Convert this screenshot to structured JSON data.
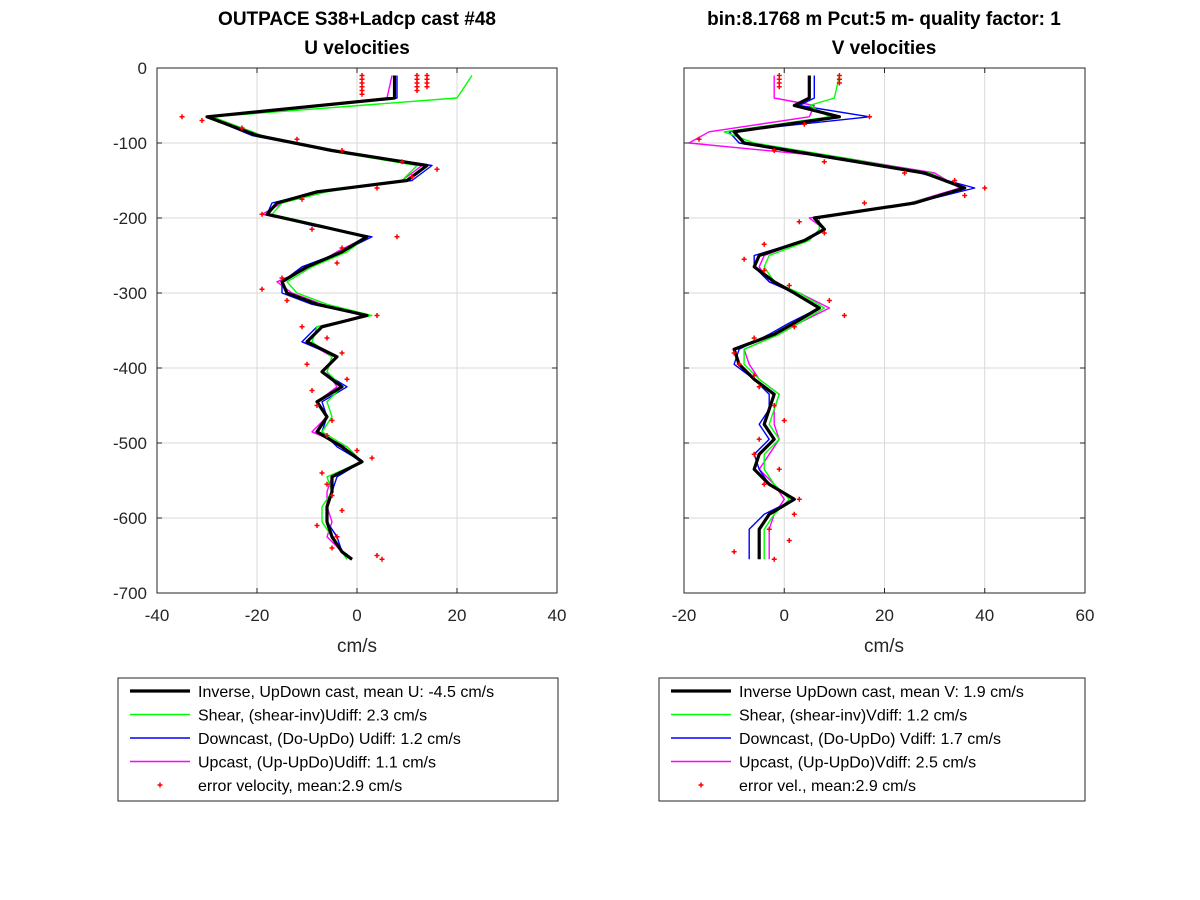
{
  "colors": {
    "inverse": "#000000",
    "shear": "#00ff00",
    "downcast": "#0000ff",
    "upcast": "#ff00ff",
    "error": "#ff0000",
    "grid": "#d9d9d9"
  },
  "chart_data": [
    {
      "type": "line",
      "title": "OUTPACE S38+Ladcp cast #48",
      "subtitle": "U velocities",
      "xlabel": "cm/s",
      "ylabel": "",
      "xlim": [
        -40,
        40
      ],
      "ylim": [
        -700,
        0
      ],
      "xticks": [
        "-40",
        "-20",
        "0",
        "20",
        "40"
      ],
      "yticks": [
        "0",
        "-100",
        "-200",
        "-300",
        "-400",
        "-500",
        "-600",
        "-700"
      ],
      "grid": true,
      "legend_position": "below",
      "depth": [
        -10,
        -40,
        -65,
        -90,
        -110,
        -130,
        -150,
        -165,
        -180,
        -195,
        -210,
        -225,
        -245,
        -265,
        -285,
        -300,
        -315,
        -330,
        -345,
        -365,
        -385,
        -405,
        -425,
        -445,
        -465,
        -485,
        -505,
        -525,
        -545,
        -565,
        -585,
        -605,
        -625,
        -645,
        -655
      ],
      "series": [
        {
          "key": "inverse",
          "name": "Inverse, UpDown cast, mean U:  -4.5 cm/s",
          "width": 3.2,
          "x": [
            7.5,
            7.5,
            -30,
            -20,
            -5,
            14,
            10,
            -8,
            -16,
            -18,
            -8,
            2,
            -3,
            -10,
            -15,
            -14,
            -8,
            2,
            -7,
            -10,
            -4,
            -7,
            -3,
            -8,
            -6,
            -8,
            -3,
            1,
            -5,
            -5,
            -6,
            -6,
            -5,
            -3,
            -1
          ]
        },
        {
          "key": "shear",
          "name": "Shear, (shear-inv)Udiff:  2.3 cm/s",
          "width": 1.4,
          "x": [
            23,
            20,
            -29,
            -19,
            -6,
            12,
            9,
            -6,
            -15,
            -17,
            -7,
            2,
            -2,
            -9,
            -14,
            -12,
            -6,
            3,
            -8,
            -9,
            -5,
            -6,
            -3,
            -6,
            -5,
            -7,
            -2,
            1,
            -6,
            -5,
            -7,
            -7,
            -5,
            -3,
            -2
          ]
        },
        {
          "key": "downcast",
          "name": "Downcast, (Do-UpDo) Udiff:  1.2 cm/s",
          "width": 1.4,
          "x": [
            8,
            8,
            -30,
            -21,
            -5,
            15,
            11,
            -8,
            -17,
            -18,
            -9,
            3,
            -3,
            -11,
            -15,
            -15,
            -9,
            2,
            -8,
            -11,
            -4,
            -7,
            -2,
            -7,
            -6,
            -7,
            -4,
            1,
            -4,
            -5,
            -6,
            -6,
            -4,
            -3,
            -1
          ]
        },
        {
          "key": "upcast",
          "name": "Upcast, (Up-UpDo)Udiff:  1.1 cm/s",
          "width": 1.4,
          "x": [
            7,
            6,
            -29,
            -19,
            -6,
            13,
            9,
            -7,
            -15,
            -19,
            -7,
            2,
            -4,
            -9,
            -16,
            -13,
            -7,
            1,
            -7,
            -10,
            -5,
            -6,
            -4,
            -8,
            -6,
            -9,
            -2,
            1,
            -5,
            -6,
            -6,
            -5,
            -6,
            -3,
            -1
          ]
        }
      ],
      "error": {
        "key": "error",
        "name": "error velocity, mean:2.9 cm/s",
        "depth": [
          -10,
          -15,
          -20,
          -25,
          -30,
          -35,
          -10,
          -15,
          -20,
          -25,
          -30,
          -10,
          -15,
          -20,
          -25,
          -65,
          -70,
          -80,
          -95,
          -110,
          -125,
          -135,
          -145,
          -160,
          -175,
          -195,
          -215,
          -225,
          -240,
          -260,
          -280,
          -295,
          -310,
          -330,
          -345,
          -360,
          -380,
          -395,
          -415,
          -430,
          -450,
          -470,
          -490,
          -510,
          -520,
          -540,
          -555,
          -570,
          -590,
          -610,
          -625,
          -640,
          -650,
          -655
        ],
        "x": [
          1,
          1,
          1,
          1,
          1,
          1,
          12,
          12,
          12,
          12,
          12,
          14,
          14,
          14,
          14,
          -35,
          -31,
          -23,
          -12,
          -3,
          9,
          16,
          11,
          4,
          -11,
          -19,
          -9,
          8,
          -3,
          -4,
          -15,
          -19,
          -14,
          4,
          -11,
          -6,
          -3,
          -10,
          -2,
          -9,
          -8,
          -5,
          -6,
          0,
          3,
          -7,
          -6,
          -5,
          -3,
          -8,
          -4,
          -5,
          4,
          5
        ]
      }
    },
    {
      "type": "line",
      "title": "bin:8.1768 m  Pcut:5 m- quality factor:  1",
      "subtitle": "V velocities",
      "xlabel": "cm/s",
      "ylabel": "",
      "xlim": [
        -20,
        60
      ],
      "ylim": [
        -700,
        0
      ],
      "xticks": [
        "-20",
        "0",
        "20",
        "40",
        "60"
      ],
      "yticks": [
        "0",
        "-100",
        "-200",
        "-300",
        "-400",
        "-500",
        "-600",
        "-700"
      ],
      "grid": true,
      "legend_position": "below",
      "depth": [
        -10,
        -40,
        -50,
        -65,
        -85,
        -100,
        -120,
        -140,
        -160,
        -180,
        -200,
        -215,
        -230,
        -250,
        -265,
        -285,
        -300,
        -320,
        -340,
        -355,
        -375,
        -395,
        -415,
        -435,
        -455,
        -475,
        -495,
        -515,
        -535,
        -555,
        -575,
        -595,
        -615,
        -635,
        -655
      ],
      "series": [
        {
          "key": "inverse",
          "name": "Inverse UpDown cast, mean V:  1.9 cm/s",
          "width": 3.2,
          "x": [
            5,
            5,
            2,
            11,
            -10,
            -8,
            10,
            28,
            36,
            26,
            6,
            8,
            4,
            -5,
            -6,
            -2,
            2,
            7,
            2,
            -2,
            -10,
            -9,
            -6,
            -2,
            -3,
            -4,
            -2,
            -5,
            -6,
            -3,
            2,
            -3,
            -5,
            -5,
            -5
          ]
        },
        {
          "key": "shear",
          "name": "Shear, (shear-inv)Vdiff:  1.2 cm/s",
          "width": 1.4,
          "x": [
            11,
            10,
            5,
            9,
            -12,
            -6,
            12,
            29,
            36,
            25,
            7,
            7,
            5,
            -3,
            -4,
            -2,
            3,
            8,
            3,
            -1,
            -8,
            -8,
            -5,
            -1,
            -2,
            -3,
            -1,
            -4,
            -4,
            -2,
            1,
            -2,
            -4,
            -4,
            -4
          ]
        },
        {
          "key": "downcast",
          "name": "Downcast, (Do-UpDo) Vdiff:  1.7 cm/s",
          "width": 1.4,
          "x": [
            6,
            6,
            3,
            17,
            -11,
            -9,
            9,
            27,
            38,
            26,
            6,
            8,
            4,
            -6,
            -6,
            -3,
            2,
            7,
            1,
            -3,
            -9,
            -10,
            -6,
            -3,
            -3,
            -5,
            -3,
            -6,
            -5,
            -3,
            2,
            -4,
            -7,
            -7,
            -7
          ]
        },
        {
          "key": "upcast",
          "name": "Upcast, (Up-UpDo)Vdiff:  2.5 cm/s",
          "width": 1.4,
          "x": [
            -2,
            -2,
            6,
            5,
            -15,
            -19,
            12,
            30,
            35,
            25,
            5,
            8,
            4,
            -4,
            -5,
            -3,
            3,
            9,
            3,
            -1,
            -8,
            -7,
            -5,
            -1,
            -2,
            -2,
            -1,
            -3,
            -5,
            -2,
            0,
            -2,
            -3,
            -3,
            -3
          ]
        }
      ],
      "error": {
        "key": "error",
        "name": "error vel., mean:2.9 cm/s",
        "depth": [
          -10,
          -15,
          -20,
          -25,
          -10,
          -15,
          -20,
          -65,
          -75,
          -95,
          -110,
          -125,
          -140,
          -150,
          -160,
          -170,
          -180,
          -205,
          -220,
          -235,
          -255,
          -270,
          -290,
          -310,
          -330,
          -345,
          -360,
          -380,
          -395,
          -410,
          -425,
          -450,
          -470,
          -495,
          -515,
          -535,
          -555,
          -575,
          -595,
          -615,
          -630,
          -645,
          -655
        ],
        "x": [
          -1,
          -1,
          -1,
          -1,
          11,
          11,
          11,
          17,
          4,
          -17,
          -2,
          8,
          24,
          34,
          40,
          36,
          16,
          3,
          8,
          -4,
          -8,
          -4,
          1,
          9,
          12,
          2,
          -6,
          -10,
          -9,
          -6,
          -5,
          -2,
          0,
          -5,
          -6,
          -1,
          -4,
          3,
          2,
          -3,
          1,
          -10,
          -2
        ]
      }
    }
  ]
}
